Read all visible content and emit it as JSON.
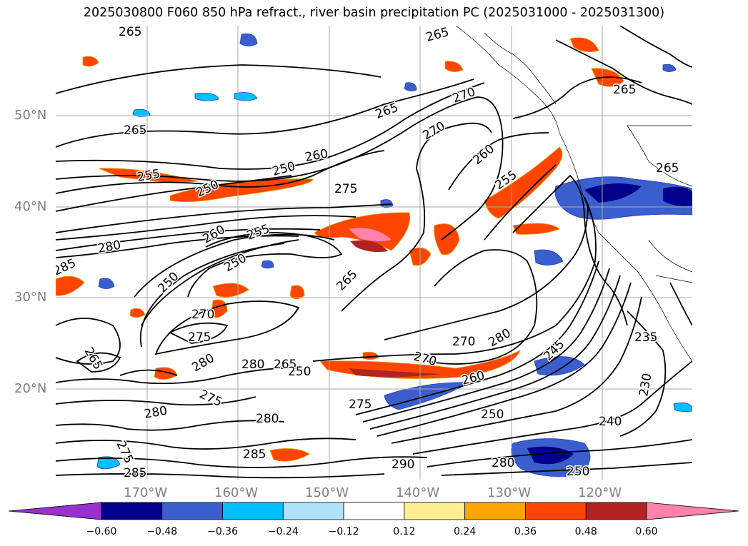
{
  "title": "2025030800 F060 850 hPa refract., river basin precipitation PC (2025031000 - 2025031300)",
  "lat_labels": [
    "50°N",
    "40°N",
    "30°N",
    "20°N"
  ],
  "lon_labels": [
    "170°W",
    "160°W",
    "150°W",
    "140°W",
    "130°W",
    "120°W"
  ],
  "contour_labels": [
    "265",
    "265",
    "265",
    "265",
    "270",
    "260",
    "255",
    "250",
    "250",
    "275",
    "280",
    "285",
    "260",
    "255",
    "250",
    "250",
    "260",
    "255",
    "265",
    "270",
    "275",
    "275",
    "270",
    "270",
    "270",
    "280",
    "265",
    "280",
    "280",
    "275",
    "280",
    "280",
    "285",
    "285",
    "290",
    "280",
    "275",
    "250",
    "240",
    "245",
    "235",
    "230",
    "265",
    "260",
    "265",
    "265",
    "250",
    "250"
  ],
  "colorbar": {
    "ticks": [
      "−0.60",
      "−0.48",
      "−0.36",
      "−0.24",
      "−0.12",
      "0.12",
      "0.24",
      "0.36",
      "0.48",
      "0.60"
    ],
    "colors": [
      "#9932cc",
      "#00008b",
      "#3a5fcd",
      "#00bfff",
      "#b0e2ff",
      "#ffffff",
      "#fff08f",
      "#ffa500",
      "#ff4500",
      "#b22222",
      "#ff82ab"
    ]
  }
}
